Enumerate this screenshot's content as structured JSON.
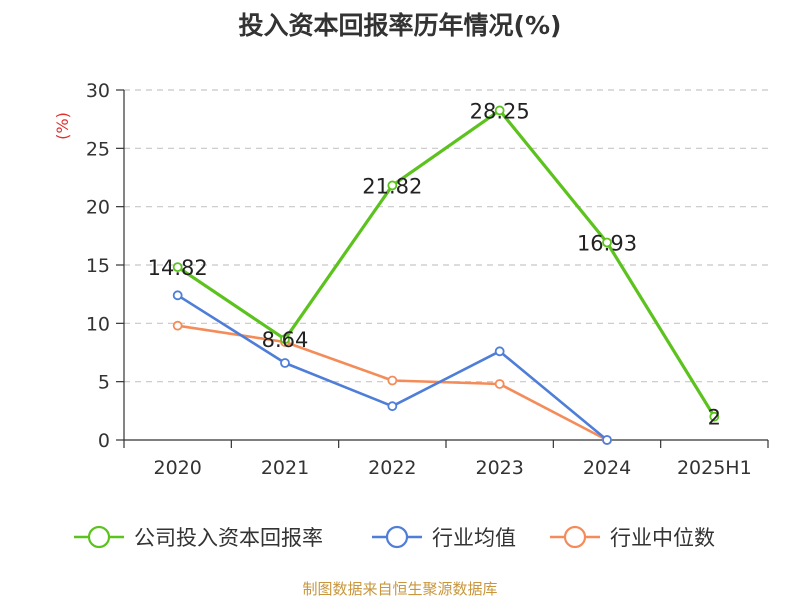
{
  "chart_data": {
    "type": "line",
    "title": "投入资本回报率历年情况(%)",
    "unit_label": "(%)",
    "categories": [
      "2020",
      "2021",
      "2022",
      "2023",
      "2024",
      "2025H1"
    ],
    "y_ticks": [
      0,
      5,
      10,
      15,
      20,
      25,
      30
    ],
    "ylim": [
      0,
      30
    ],
    "grid": "horizontal-dashed",
    "legend_placement": "bottom",
    "series": [
      {
        "name": "公司投入资本回报率",
        "color": "#5cc21e",
        "values": [
          14.82,
          8.64,
          21.82,
          28.25,
          16.93,
          2
        ],
        "labels": [
          "14.82",
          "8.64",
          "21.82",
          "28.25",
          "16.93",
          "2"
        ]
      },
      {
        "name": "行业均值",
        "color": "#4e7ed8",
        "values": [
          12.4,
          6.6,
          2.9,
          7.6,
          0.0,
          null
        ]
      },
      {
        "name": "行业中位数",
        "color": "#f48c5a",
        "values": [
          9.8,
          8.4,
          5.1,
          4.8,
          0.0,
          null
        ]
      }
    ]
  },
  "source_text": "制图数据来自恒生聚源数据库"
}
